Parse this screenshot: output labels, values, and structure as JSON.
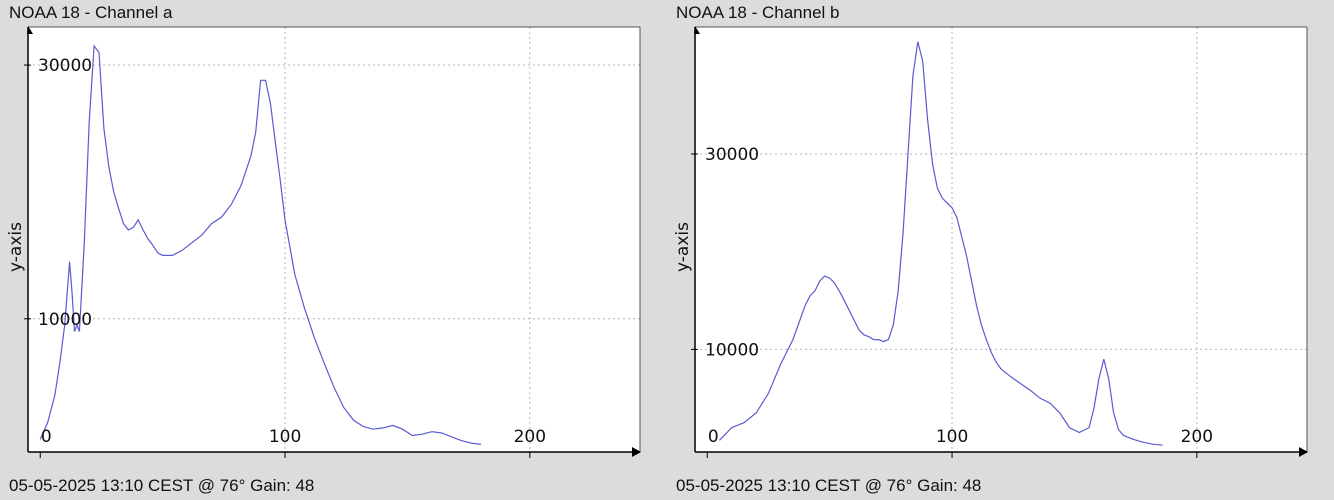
{
  "chart_data": [
    {
      "type": "line",
      "title": "NOAA 18 - Channel a",
      "footer": "05-05-2025 13:10 CEST @ 76° Gain: 48",
      "ylabel": "y-axis",
      "xlim": [
        -5,
        245
      ],
      "ylim": [
        -500,
        33000
      ],
      "x_ticks": [
        0,
        100,
        200
      ],
      "y_ticks": [
        10000,
        30000
      ],
      "grid": true,
      "line_color": "#5a5ad2",
      "series": [
        {
          "x": [
            0,
            3,
            6,
            8,
            10,
            12,
            13,
            14,
            15,
            16,
            18,
            20,
            22,
            24,
            26,
            28,
            30,
            32,
            34,
            36,
            38,
            40,
            42,
            44,
            46,
            48,
            50,
            54,
            58,
            62,
            66,
            70,
            74,
            78,
            82,
            86,
            88,
            90,
            92,
            94,
            96,
            98,
            100,
            104,
            108,
            112,
            116,
            120,
            124,
            128,
            132,
            136,
            140,
            144,
            148,
            152,
            156,
            160,
            164,
            168,
            172,
            176,
            180
          ],
          "y": [
            500,
            1800,
            4000,
            6500,
            9500,
            14500,
            12000,
            9000,
            9500,
            9000,
            16000,
            25500,
            31500,
            31000,
            25000,
            22000,
            20000,
            18700,
            17500,
            17000,
            17200,
            17800,
            17000,
            16300,
            15800,
            15200,
            15000,
            15000,
            15400,
            16000,
            16600,
            17500,
            18000,
            19000,
            20500,
            22800,
            24700,
            28800,
            28800,
            27000,
            24000,
            21000,
            17800,
            13500,
            10800,
            8500,
            6500,
            4600,
            3000,
            2000,
            1500,
            1300,
            1400,
            1600,
            1300,
            800,
            900,
            1100,
            1000,
            700,
            400,
            200,
            100
          ]
        }
      ]
    },
    {
      "type": "line",
      "title": "NOAA 18 - Channel b",
      "footer": "05-05-2025 13:10 CEST @ 76° Gain: 48",
      "ylabel": "y-axis",
      "xlim": [
        -5,
        245
      ],
      "ylim": [
        -500,
        43000
      ],
      "x_ticks": [
        0,
        100,
        200
      ],
      "y_ticks": [
        10000,
        30000
      ],
      "grid": true,
      "line_color": "#5a5ad2",
      "series": [
        {
          "x": [
            5,
            10,
            15,
            20,
            25,
            30,
            35,
            40,
            42,
            44,
            46,
            48,
            50,
            52,
            55,
            58,
            60,
            62,
            64,
            66,
            68,
            70,
            72,
            74,
            76,
            78,
            80,
            82,
            84,
            86,
            88,
            90,
            92,
            94,
            96,
            98,
            100,
            102,
            104,
            106,
            108,
            110,
            112,
            114,
            116,
            118,
            120,
            124,
            128,
            132,
            136,
            140,
            144,
            148,
            152,
            156,
            158,
            160,
            162,
            164,
            166,
            168,
            170,
            174,
            178,
            182,
            186
          ],
          "y": [
            700,
            2000,
            2500,
            3500,
            5500,
            8500,
            11000,
            14500,
            15500,
            16000,
            17000,
            17500,
            17300,
            16800,
            15500,
            14000,
            13000,
            12000,
            11500,
            11300,
            11000,
            11000,
            10800,
            11000,
            12500,
            16000,
            22000,
            30000,
            38000,
            41500,
            39500,
            33500,
            29000,
            26500,
            25500,
            25000,
            24500,
            23500,
            21500,
            19500,
            17000,
            14500,
            12500,
            11000,
            9700,
            8700,
            8000,
            7200,
            6500,
            5800,
            5000,
            4500,
            3500,
            2000,
            1500,
            2000,
            4000,
            7000,
            9000,
            7000,
            3500,
            1800,
            1200,
            800,
            500,
            300,
            200
          ]
        }
      ]
    }
  ]
}
